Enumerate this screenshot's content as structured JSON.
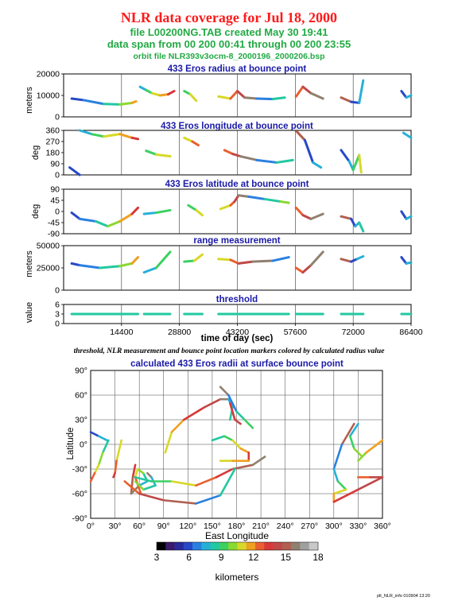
{
  "header": {
    "title": "NLR data coverage for Jul 18, 2000",
    "file_line": "file L00200NG.TAB created May 30 19:41",
    "span_line": "data span from 00 200 00:41 through 00 200 23:55",
    "orbit_line": "orbit file NLR393v3ocm-8_2000196_2000206.bsp"
  },
  "colors": {
    "title": "#ff1a1a",
    "info": "#22aa44",
    "panel_title": "#1a1aa8",
    "colorbar_palette": [
      "#000000",
      "#3a1a6a",
      "#2a2a9a",
      "#2848c8",
      "#2a80e0",
      "#26b0d8",
      "#22c8a0",
      "#3cd060",
      "#8ad830",
      "#d8d828",
      "#f0a020",
      "#e86030",
      "#d83838",
      "#c04848",
      "#b06050",
      "#908070",
      "#a0a0a0",
      "#c8c8c8"
    ]
  },
  "chart_data": [
    {
      "type": "scatter",
      "title": "433 Eros radius at bounce point",
      "ylabel": "meters",
      "xlim": [
        0,
        86400
      ],
      "ylim": [
        0,
        20000
      ],
      "yticks": [
        "0",
        "10000",
        "20000"
      ],
      "x_tick_labels": [],
      "series": [
        {
          "x": [
            2000,
            5000,
            10000,
            14000,
            17000,
            18000
          ],
          "y": [
            8500,
            7800,
            6000,
            5800,
            6500,
            7200
          ]
        },
        {
          "x": [
            19000,
            20500,
            22000,
            24000,
            26000,
            27500
          ],
          "y": [
            14000,
            12500,
            11000,
            10000,
            10500,
            12000
          ]
        },
        {
          "x": [
            30000,
            31500,
            33000
          ],
          "y": [
            12000,
            10500,
            7500
          ]
        },
        {
          "x": [
            38500,
            41500,
            43200,
            45000,
            48000,
            52000,
            55000
          ],
          "y": [
            9500,
            8500,
            12000,
            9000,
            8500,
            8300,
            9000
          ]
        },
        {
          "x": [
            57800,
            59500,
            61500,
            64500
          ],
          "y": [
            9500,
            14000,
            11000,
            8500
          ]
        },
        {
          "x": [
            69000,
            71500,
            73500,
            74500
          ],
          "y": [
            9000,
            7000,
            6500,
            17000
          ]
        },
        {
          "x": [
            84000,
            85200,
            86400
          ],
          "y": [
            12000,
            9000,
            10000
          ]
        }
      ]
    },
    {
      "type": "scatter",
      "title": "433 Eros longitude at bounce point",
      "ylabel": "deg",
      "xlim": [
        0,
        86400
      ],
      "ylim": [
        0,
        360
      ],
      "yticks": [
        "0",
        "90",
        "180",
        "270",
        "360"
      ],
      "x_tick_labels": [],
      "series": [
        {
          "x": [
            1500,
            4000
          ],
          "y": [
            60,
            0
          ]
        },
        {
          "x": [
            4000,
            7000,
            10000,
            14000,
            17000,
            18500
          ],
          "y": [
            360,
            330,
            310,
            330,
            300,
            290
          ]
        },
        {
          "x": [
            20500,
            23000,
            26500
          ],
          "y": [
            195,
            165,
            150
          ]
        },
        {
          "x": [
            30000,
            32000,
            33500
          ],
          "y": [
            300,
            270,
            240
          ]
        },
        {
          "x": [
            40000,
            42000,
            44000,
            48000,
            53000,
            57000
          ],
          "y": [
            200,
            170,
            150,
            120,
            100,
            120
          ]
        },
        {
          "x": [
            58000,
            60000,
            62000,
            64000
          ],
          "y": [
            350,
            280,
            100,
            60
          ]
        },
        {
          "x": [
            69000,
            71000,
            72000,
            73500,
            74000
          ],
          "y": [
            200,
            110,
            40,
            160,
            20
          ]
        },
        {
          "x": [
            84500,
            86400
          ],
          "y": [
            340,
            300
          ]
        }
      ]
    },
    {
      "type": "scatter",
      "title": "433 Eros latitude at bounce point",
      "ylabel": "deg",
      "xlim": [
        0,
        86400
      ],
      "ylim": [
        -90,
        90
      ],
      "yticks": [
        "-90",
        "-45",
        "0",
        "45",
        "90"
      ],
      "x_tick_labels": [],
      "series": [
        {
          "x": [
            2000,
            4000,
            8000,
            11000,
            14000,
            17000,
            18500
          ],
          "y": [
            -5,
            -30,
            -40,
            -60,
            -40,
            -10,
            15
          ]
        },
        {
          "x": [
            20000,
            23000,
            26500
          ],
          "y": [
            -10,
            -5,
            5
          ]
        },
        {
          "x": [
            31000,
            33000,
            34500
          ],
          "y": [
            25,
            5,
            -15
          ]
        },
        {
          "x": [
            39000,
            41500,
            42500,
            43500,
            46000,
            50000,
            54000,
            56000
          ],
          "y": [
            10,
            25,
            40,
            65,
            60,
            50,
            40,
            35
          ]
        },
        {
          "x": [
            57800,
            59500,
            61500,
            64500
          ],
          "y": [
            15,
            -15,
            -30,
            -10
          ]
        },
        {
          "x": [
            69000,
            71500,
            72500,
            73500,
            74500
          ],
          "y": [
            -20,
            -30,
            -60,
            -45,
            -80
          ]
        },
        {
          "x": [
            84000,
            85200,
            86400
          ],
          "y": [
            0,
            -30,
            -20
          ]
        }
      ]
    },
    {
      "type": "scatter",
      "title": "range measurement",
      "ylabel": "meters",
      "xlim": [
        0,
        86400
      ],
      "ylim": [
        0,
        50000
      ],
      "yticks": [
        "0",
        "25000",
        "50000"
      ],
      "x_tick_labels": [],
      "series": [
        {
          "x": [
            2000,
            4000,
            9000,
            14000,
            17000,
            18500
          ],
          "y": [
            30000,
            28000,
            25000,
            27000,
            30000,
            37000
          ]
        },
        {
          "x": [
            20000,
            23000,
            26500
          ],
          "y": [
            20000,
            25000,
            43000
          ]
        },
        {
          "x": [
            30000,
            32500,
            34500
          ],
          "y": [
            32000,
            33000,
            40000
          ]
        },
        {
          "x": [
            38500,
            41500,
            43500,
            47000,
            52000,
            56000
          ],
          "y": [
            35000,
            34000,
            30000,
            32000,
            33000,
            37000
          ]
        },
        {
          "x": [
            57800,
            59500,
            61500,
            64500
          ],
          "y": [
            25000,
            20000,
            28000,
            43000
          ]
        },
        {
          "x": [
            69000,
            71500,
            73000,
            74500
          ],
          "y": [
            35000,
            32000,
            35000,
            38000
          ]
        },
        {
          "x": [
            84000,
            85200,
            86400
          ],
          "y": [
            37000,
            30000,
            31000
          ]
        }
      ]
    },
    {
      "type": "scatter",
      "title": "threshold",
      "ylabel": "value",
      "xlabel": "time of day (sec)",
      "xlim": [
        0,
        86400
      ],
      "ylim": [
        0,
        6
      ],
      "yticks": [
        "0",
        "3",
        "6"
      ],
      "x_tick_labels": [
        "14400",
        "28800",
        "43200",
        "57600",
        "72000",
        "86400"
      ],
      "series": [
        {
          "x": [
            2000,
            18500
          ],
          "y": [
            3,
            3
          ]
        },
        {
          "x": [
            20000,
            26500
          ],
          "y": [
            3,
            3
          ]
        },
        {
          "x": [
            30000,
            34500
          ],
          "y": [
            3,
            3
          ]
        },
        {
          "x": [
            38500,
            56000
          ],
          "y": [
            3,
            3
          ]
        },
        {
          "x": [
            57800,
            64500
          ],
          "y": [
            3,
            3
          ]
        },
        {
          "x": [
            69000,
            74500
          ],
          "y": [
            3,
            3
          ]
        },
        {
          "x": [
            84000,
            86400
          ],
          "y": [
            3,
            3
          ]
        }
      ]
    },
    {
      "type": "scatter",
      "title": "calculated 433 Eros radii at surface bounce point",
      "xlabel": "East Longitude",
      "ylabel": "Latitude",
      "xlim": [
        0,
        360
      ],
      "ylim": [
        -90,
        90
      ],
      "x_tick_labels": [
        "0°",
        "30°",
        "60°",
        "90°",
        "120°",
        "150°",
        "180°",
        "210°",
        "240°",
        "270°",
        "300°",
        "330°",
        "360°"
      ],
      "y_tick_labels": [
        "-90°",
        "-60°",
        "-30°",
        "0°",
        "30°",
        "60°",
        "90°"
      ],
      "colorbar": {
        "min": 3,
        "max": 18,
        "ticks": [
          "3",
          "6",
          "9",
          "12",
          "15",
          "18"
        ],
        "label": "kilometers"
      },
      "series": [
        {
          "x": [
            0,
            10,
            20
          ],
          "y": [
            15,
            10,
            5
          ]
        },
        {
          "x": [
            22,
            15,
            10,
            5,
            0
          ],
          "y": [
            5,
            -10,
            -25,
            -35,
            -45
          ]
        },
        {
          "x": [
            38,
            32,
            30,
            28
          ],
          "y": [
            5,
            -20,
            -35,
            -40
          ]
        },
        {
          "x": [
            55,
            52,
            50,
            60,
            70,
            65,
            58,
            55,
            62
          ],
          "y": [
            -25,
            -40,
            -60,
            -50,
            -45,
            -35,
            -30,
            -40,
            -60
          ]
        },
        {
          "x": [
            70,
            75,
            80,
            65,
            55
          ],
          "y": [
            -35,
            -40,
            -50,
            -55,
            -45
          ]
        },
        {
          "x": [
            55,
            75,
            100,
            130,
            155,
            175,
            200,
            215
          ],
          "y": [
            -40,
            -45,
            -45,
            -50,
            -40,
            -30,
            -25,
            -15
          ]
        },
        {
          "x": [
            92,
            100,
            115,
            140,
            160,
            170,
            175,
            172
          ],
          "y": [
            -10,
            15,
            30,
            45,
            55,
            55,
            45,
            30
          ]
        },
        {
          "x": [
            172,
            178,
            185
          ],
          "y": [
            50,
            30,
            25
          ]
        },
        {
          "x": [
            160,
            170,
            180,
            190,
            200
          ],
          "y": [
            70,
            60,
            40,
            30,
            20
          ]
        },
        {
          "x": [
            150,
            165,
            175,
            185,
            195,
            195
          ],
          "y": [
            5,
            10,
            5,
            -5,
            -10,
            -20
          ]
        },
        {
          "x": [
            160,
            175,
            195
          ],
          "y": [
            -20,
            -20,
            -20
          ]
        },
        {
          "x": [
            42,
            60,
            90,
            130,
            160,
            178
          ],
          "y": [
            -45,
            -60,
            -68,
            -72,
            -62,
            -30
          ]
        },
        {
          "x": [
            325,
            310,
            300,
            305,
            315,
            300,
            300,
            330,
            360
          ],
          "y": [
            25,
            0,
            -30,
            -45,
            -55,
            -60,
            -70,
            -55,
            -40
          ]
        },
        {
          "x": [
            330,
            320,
            325,
            335,
            340
          ],
          "y": [
            25,
            10,
            -5,
            -15,
            -10
          ]
        },
        {
          "x": [
            330,
            340,
            360
          ],
          "y": [
            -20,
            -10,
            5
          ]
        },
        {
          "x": [
            330,
            345,
            360
          ],
          "y": [
            -40,
            -40,
            -40
          ]
        }
      ]
    }
  ],
  "time_axis_label": "time of day (sec)",
  "caption": "threshold, NLR measurement and bounce point location markers colored by calculated radius value",
  "footer": "plt_NLR_info 010904 13:20"
}
